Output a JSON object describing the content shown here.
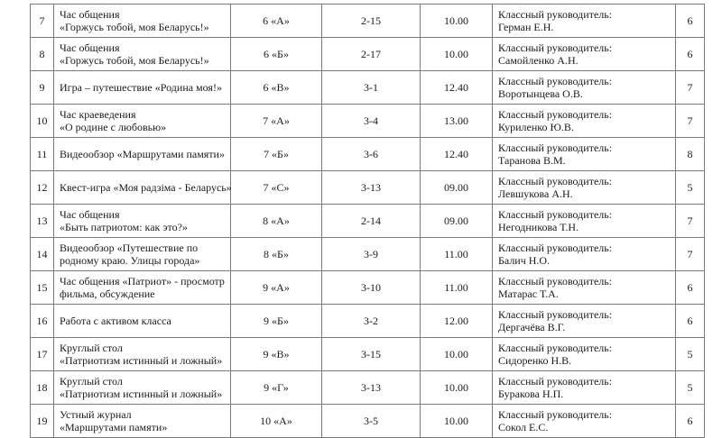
{
  "table": {
    "rows": [
      {
        "num": "7",
        "title": [
          "Час общения",
          "«Горжусь тобой, моя Беларусь!»"
        ],
        "class": "6 «А»",
        "room": "2-15",
        "time": "10.00",
        "resp_label": "Классный руководитель:",
        "resp_name": "Герман Е.Н.",
        "count": "6"
      },
      {
        "num": "8",
        "title": [
          "Час общения",
          "«Горжусь тобой, моя Беларусь!»"
        ],
        "class": "6 «Б»",
        "room": "2-17",
        "time": "10.00",
        "resp_label": "Классный руководитель:",
        "resp_name": "Самойленко А.Н.",
        "count": "6"
      },
      {
        "num": "9",
        "title": [
          "Игра – путешествие «Родина моя!»"
        ],
        "class": "6 «В»",
        "room": "3-1",
        "time": "12.40",
        "resp_label": "Классный руководитель:",
        "resp_name": "Воротынцева О.В.",
        "count": "7"
      },
      {
        "num": "10",
        "title": [
          "Час краеведения",
          "«О родине с любовью»"
        ],
        "class": "7 «А»",
        "room": "3-4",
        "time": "13.00",
        "resp_label": "Классный руководитель:",
        "resp_name": "Куриленко Ю.В.",
        "count": "7"
      },
      {
        "num": "11",
        "title": [
          "Видеообзор «Маршрутами памяти»"
        ],
        "class": "7 «Б»",
        "room": "3-6",
        "time": "12.40",
        "resp_label": "Классный руководитель:",
        "resp_name": "Таранова В.М.",
        "count": "8"
      },
      {
        "num": "12",
        "title": [
          "Квест-игра «Моя радзіма - Беларусь»"
        ],
        "class": "7 «С»",
        "room": "3-13",
        "time": "09.00",
        "resp_label": "Классный руководитель:",
        "resp_name": "Левшукова А.Н.",
        "count": "5"
      },
      {
        "num": "13",
        "title": [
          "Час общения",
          "«Быть патриотом: как это?»"
        ],
        "class": "8 «А»",
        "room": "2-14",
        "time": "09.00",
        "resp_label": "Классный руководитель:",
        "resp_name": "Негодникова Т.Н.",
        "count": "7"
      },
      {
        "num": "14",
        "title": [
          "Видеообзор «Путешествие по",
          "родному краю. Улицы города»"
        ],
        "class": "8 «Б»",
        "room": "3-9",
        "time": "11.00",
        "resp_label": "Классный руководитель:",
        "resp_name": "Балич Н.О.",
        "count": "7"
      },
      {
        "num": "15",
        "title": [
          "Час общения «Патриот» - просмотр",
          "фильма,  обсуждение"
        ],
        "class": "9 «А»",
        "room": "3-10",
        "time": "11.00",
        "resp_label": "Классный руководитель:",
        "resp_name": "Матарас Т.А.",
        "count": "6"
      },
      {
        "num": "16",
        "title": [
          "Работа с активом класса"
        ],
        "class": "9 «Б»",
        "room": "3-2",
        "time": "12.00",
        "resp_label": "Классный руководитель:",
        "resp_name": "Дергачёва В.Г.",
        "count": "6"
      },
      {
        "num": "17",
        "title": [
          "Круглый стол",
          "«Патриотизм истинный и ложный»"
        ],
        "class": "9 «В»",
        "room": "3-15",
        "time": "10.00",
        "resp_label": "Классный руководитель:",
        "resp_name": "Сидоренко Н.В.",
        "count": "5"
      },
      {
        "num": "18",
        "title": [
          "Круглый стол",
          "«Патриотизм истинный и ложный»"
        ],
        "class": "9 «Г»",
        "room": "3-13",
        "time": "10.00",
        "resp_label": "Классный руководитель:",
        "resp_name": "Буракова Н.П.",
        "count": "5"
      },
      {
        "num": "19",
        "title": [
          "Устный журнал",
          "«Маршрутами памяти»"
        ],
        "class": "10 «А»",
        "room": "3-5",
        "time": "10.00",
        "resp_label": "Классный руководитель:",
        "resp_name": "Сокол Е.С.",
        "count": "6"
      }
    ]
  }
}
